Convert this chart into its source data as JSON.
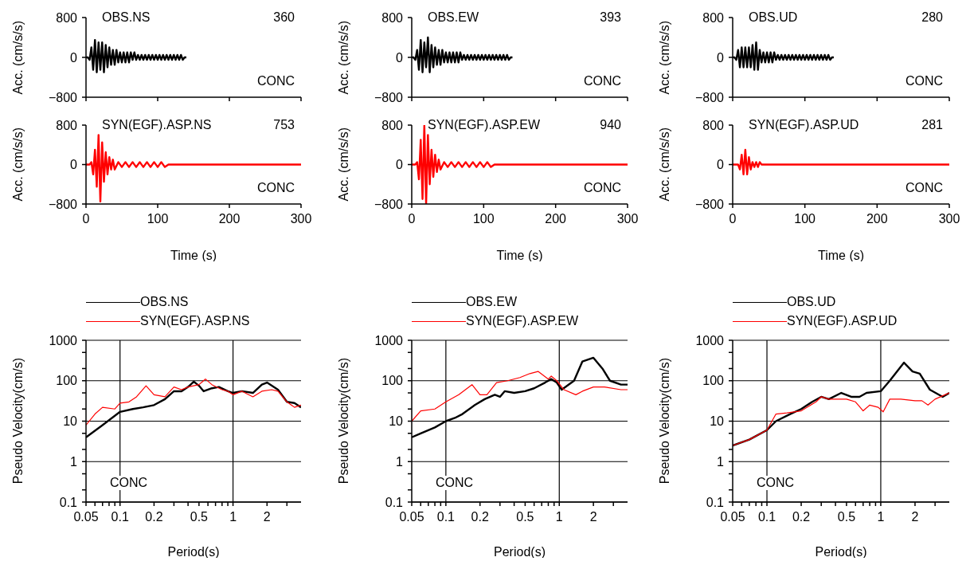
{
  "chart_data": [
    {
      "type": "line",
      "ylabel": "Acc. (cm/s/s)",
      "annotations": [
        "OBS.NS",
        "360",
        "CONC"
      ],
      "xlim": [
        0,
        300
      ],
      "xticks": [
        0,
        100,
        200,
        300
      ],
      "ylim": [
        -800,
        800
      ],
      "yticks": [
        {
          "value": -800,
          "label": "−800"
        },
        0,
        800
      ],
      "tick_labels": "y",
      "series": [
        {
          "color": "#000000",
          "x": [
            0,
            2.5,
            5,
            7.5,
            10,
            12.5,
            15,
            17.5,
            20,
            22.5,
            25,
            27.5,
            30,
            32.5,
            35,
            37.5,
            40,
            42.5,
            45,
            47.5,
            50,
            52.5,
            55,
            57.5,
            60,
            62.5,
            65,
            67.5,
            70,
            72.5,
            75,
            77.5,
            80,
            82.5,
            85,
            87.5,
            90,
            92.5,
            95,
            97.5,
            100,
            102.5,
            105,
            107.5,
            110,
            112.5,
            115,
            117.5,
            120,
            122.5,
            125,
            127.5,
            130,
            132.5,
            135,
            137.5,
            140
          ],
          "values": [
            0,
            0,
            -50,
            200,
            -250,
            350,
            -300,
            300,
            -250,
            300,
            -300,
            250,
            -200,
            200,
            -150,
            150,
            -150,
            150,
            -100,
            100,
            -100,
            100,
            -100,
            100,
            -100,
            100,
            -50,
            100,
            -50,
            50,
            -50,
            50,
            -50,
            50,
            -50,
            50,
            -50,
            50,
            -50,
            50,
            -50,
            50,
            -50,
            50,
            -50,
            50,
            -50,
            50,
            -50,
            50,
            -50,
            50,
            -50,
            50,
            -50,
            0,
            0
          ]
        }
      ]
    },
    {
      "type": "line",
      "ylabel": "Acc. (cm/s/s)",
      "annotations": [
        "OBS.EW",
        "393",
        "CONC"
      ],
      "xlim": [
        0,
        300
      ],
      "xticks": [
        0,
        100,
        200,
        300
      ],
      "ylim": [
        -800,
        800
      ],
      "yticks": [
        {
          "value": -800,
          "label": "−800"
        },
        0,
        800
      ],
      "tick_labels": "y",
      "series": [
        {
          "color": "#000000",
          "x": [
            0,
            2.5,
            5,
            7.5,
            10,
            12.5,
            15,
            17.5,
            20,
            22.5,
            25,
            27.5,
            30,
            32.5,
            35,
            37.5,
            40,
            42.5,
            45,
            47.5,
            50,
            52.5,
            55,
            57.5,
            60,
            62.5,
            65,
            67.5,
            70,
            72.5,
            75,
            77.5,
            80,
            82.5,
            85,
            87.5,
            90,
            92.5,
            95,
            97.5,
            100,
            102.5,
            105,
            107.5,
            110,
            112.5,
            115,
            117.5,
            120,
            122.5,
            125,
            127.5,
            130,
            132.5,
            135,
            137.5,
            140
          ],
          "values": [
            0,
            0,
            -50,
            150,
            -250,
            350,
            -300,
            300,
            -200,
            400,
            -300,
            250,
            -200,
            200,
            -150,
            150,
            -150,
            150,
            -100,
            100,
            -100,
            100,
            -100,
            100,
            -100,
            100,
            -100,
            100,
            -50,
            50,
            -50,
            50,
            -50,
            50,
            -50,
            50,
            -50,
            50,
            -50,
            50,
            -50,
            50,
            -50,
            50,
            -50,
            50,
            -50,
            50,
            -50,
            50,
            -50,
            50,
            -50,
            50,
            -50,
            0,
            0
          ]
        }
      ]
    },
    {
      "type": "line",
      "ylabel": "Acc. (cm/s/s)",
      "annotations": [
        "OBS.UD",
        "280",
        "CONC"
      ],
      "xlim": [
        0,
        300
      ],
      "xticks": [
        0,
        100,
        200,
        300
      ],
      "ylim": [
        -800,
        800
      ],
      "yticks": [
        {
          "value": -800,
          "label": "−800"
        },
        0,
        800
      ],
      "tick_labels": "y",
      "series": [
        {
          "color": "#000000",
          "x": [
            0,
            2.5,
            5,
            7.5,
            10,
            12.5,
            15,
            17.5,
            20,
            22.5,
            25,
            27.5,
            30,
            32.5,
            35,
            37.5,
            40,
            42.5,
            45,
            47.5,
            50,
            52.5,
            55,
            57.5,
            60,
            62.5,
            65,
            67.5,
            70,
            72.5,
            75,
            77.5,
            80,
            82.5,
            85,
            87.5,
            90,
            92.5,
            95,
            97.5,
            100,
            102.5,
            105,
            107.5,
            110,
            112.5,
            115,
            117.5,
            120,
            122.5,
            125,
            127.5,
            130,
            132.5,
            135,
            137.5,
            140
          ],
          "values": [
            0,
            0,
            -50,
            150,
            -200,
            200,
            -200,
            200,
            -200,
            200,
            -200,
            250,
            -250,
            300,
            -250,
            150,
            -100,
            100,
            -100,
            100,
            -100,
            100,
            -100,
            100,
            -50,
            50,
            -50,
            50,
            -50,
            50,
            -50,
            50,
            -50,
            50,
            -50,
            50,
            -50,
            50,
            -50,
            50,
            -50,
            50,
            -50,
            50,
            -50,
            50,
            -50,
            50,
            -50,
            50,
            -50,
            50,
            -50,
            50,
            -50,
            0,
            0
          ]
        }
      ]
    },
    {
      "type": "line",
      "xlabel": "Time (s)",
      "ylabel": "Acc. (cm/s/s)",
      "annotations": [
        "SYN(EGF).ASP.NS",
        "753",
        "CONC"
      ],
      "xlim": [
        0,
        300
      ],
      "xticks": [
        0,
        100,
        200,
        300
      ],
      "ylim": [
        -800,
        800
      ],
      "yticks": [
        {
          "value": -800,
          "label": "−800"
        },
        0,
        800
      ],
      "series": [
        {
          "color": "#ff0000",
          "x": [
            0,
            5,
            7.5,
            10,
            12.5,
            15,
            17.5,
            20,
            22.5,
            25,
            27.5,
            30,
            32.5,
            35,
            37.5,
            40,
            45,
            50,
            55,
            60,
            65,
            70,
            75,
            80,
            85,
            90,
            95,
            100,
            105,
            110,
            115,
            120,
            130,
            140,
            150,
            160,
            170,
            300
          ],
          "values": [
            0,
            0,
            50,
            -200,
            300,
            -450,
            600,
            -750,
            450,
            -350,
            250,
            -200,
            150,
            -100,
            100,
            -100,
            50,
            -50,
            50,
            -50,
            50,
            -50,
            50,
            -50,
            50,
            -50,
            50,
            -50,
            50,
            -50,
            0,
            0,
            0,
            0,
            0,
            0,
            0,
            0
          ]
        }
      ]
    },
    {
      "type": "line",
      "xlabel": "Time (s)",
      "ylabel": "Acc. (cm/s/s)",
      "annotations": [
        "SYN(EGF).ASP.EW",
        "940",
        "CONC"
      ],
      "xlim": [
        0,
        300
      ],
      "xticks": [
        0,
        100,
        200,
        300
      ],
      "ylim": [
        -800,
        800
      ],
      "yticks": [
        {
          "value": -800,
          "label": "−800"
        },
        0,
        800
      ],
      "series": [
        {
          "color": "#ff0000",
          "x": [
            0,
            5,
            7.5,
            10,
            12.5,
            15,
            17.5,
            20,
            22.5,
            25,
            27.5,
            30,
            32.5,
            35,
            37.5,
            40,
            45,
            50,
            55,
            60,
            65,
            70,
            75,
            80,
            85,
            90,
            95,
            100,
            105,
            110,
            115,
            120,
            130,
            140,
            150,
            160,
            170,
            300
          ],
          "values": [
            0,
            0,
            50,
            -300,
            500,
            -700,
            800,
            -800,
            600,
            -400,
            300,
            -250,
            200,
            -150,
            100,
            -100,
            50,
            -50,
            50,
            -50,
            50,
            -50,
            50,
            -50,
            50,
            -50,
            50,
            -50,
            50,
            -50,
            0,
            0,
            0,
            0,
            0,
            0,
            0,
            0
          ]
        }
      ]
    },
    {
      "type": "line",
      "xlabel": "Time (s)",
      "ylabel": "Acc. (cm/s/s)",
      "annotations": [
        "SYN(EGF).ASP.UD",
        "281",
        "CONC"
      ],
      "xlim": [
        0,
        300
      ],
      "xticks": [
        0,
        100,
        200,
        300
      ],
      "ylim": [
        -800,
        800
      ],
      "yticks": [
        {
          "value": -800,
          "label": "−800"
        },
        0,
        800
      ],
      "series": [
        {
          "color": "#ff0000",
          "x": [
            0,
            5,
            7.5,
            10,
            12.5,
            15,
            17.5,
            20,
            22.5,
            25,
            27.5,
            30,
            32.5,
            35,
            37.5,
            40,
            45,
            50,
            55,
            60,
            65,
            70,
            75,
            80,
            85,
            90,
            95,
            100,
            105,
            110,
            115,
            120,
            130,
            140,
            150,
            160,
            170,
            300
          ],
          "values": [
            0,
            0,
            0,
            -100,
            200,
            -200,
            300,
            -200,
            150,
            -100,
            50,
            -50,
            50,
            -50,
            50,
            0,
            0,
            0,
            0,
            0,
            0,
            0,
            0,
            0,
            0,
            0,
            0,
            0,
            0,
            0,
            0,
            0,
            0,
            0,
            0,
            0,
            0,
            0
          ]
        }
      ]
    },
    {
      "type": "line",
      "xlabel": "Period(s)",
      "ylabel": "Pseudo Velocity(cm/s)",
      "annotations": [
        "CONC"
      ],
      "log": "xy",
      "grid": true,
      "legend": "top",
      "xlim": [
        0.05,
        4
      ],
      "xticks": [
        0.05,
        {
          "value": 0.06,
          "label": null
        },
        {
          "value": 0.07,
          "label": null
        },
        {
          "value": 0.08,
          "label": null
        },
        {
          "value": 0.09,
          "label": null
        },
        0.1,
        0.2,
        {
          "value": 0.3,
          "label": null
        },
        {
          "value": 0.4,
          "label": null
        },
        0.5,
        {
          "value": 0.6,
          "label": null
        },
        {
          "value": 0.7,
          "label": null
        },
        {
          "value": 0.8,
          "label": null
        },
        {
          "value": 0.9,
          "label": null
        },
        1,
        2,
        {
          "value": 3,
          "label": null
        }
      ],
      "ylim": [
        0.1,
        1000
      ],
      "yticks": [
        0.1,
        {
          "value": 0.2,
          "label": null
        },
        {
          "value": 0.5,
          "label": null
        },
        1,
        {
          "value": 2,
          "label": null
        },
        {
          "value": 5,
          "label": null
        },
        10,
        {
          "value": 20,
          "label": null
        },
        {
          "value": 50,
          "label": null
        },
        100,
        {
          "value": 200,
          "label": null
        },
        {
          "value": 500,
          "label": null
        },
        1000
      ],
      "series": [
        {
          "name": "OBS.NS",
          "color": "#000000",
          "x": [
            0.05,
            0.07,
            0.1,
            0.13,
            0.16,
            0.2,
            0.25,
            0.3,
            0.35,
            0.4,
            0.45,
            0.5,
            0.55,
            0.65,
            0.75,
            0.9,
            1,
            1.2,
            1.5,
            1.8,
            2,
            2.5,
            3,
            3.5,
            4
          ],
          "values": [
            4,
            8,
            17,
            20,
            22,
            25,
            35,
            55,
            55,
            70,
            95,
            75,
            55,
            65,
            70,
            55,
            50,
            55,
            50,
            80,
            90,
            60,
            30,
            28,
            22
          ]
        },
        {
          "name": "SYN(EGF).ASP.NS",
          "color": "#ff0000",
          "x": [
            0.05,
            0.06,
            0.07,
            0.09,
            0.1,
            0.12,
            0.14,
            0.17,
            0.2,
            0.25,
            0.3,
            0.35,
            0.4,
            0.5,
            0.57,
            0.65,
            0.8,
            0.9,
            1,
            1.2,
            1.5,
            1.8,
            2.2,
            2.5,
            3,
            3.5,
            4
          ],
          "values": [
            8,
            15,
            22,
            20,
            28,
            30,
            40,
            75,
            45,
            40,
            70,
            60,
            70,
            80,
            110,
            80,
            60,
            55,
            45,
            55,
            40,
            55,
            60,
            55,
            30,
            22,
            25
          ]
        }
      ]
    },
    {
      "type": "line",
      "xlabel": "Period(s)",
      "ylabel": "Pseudo Velocity(cm/s)",
      "annotations": [
        "CONC"
      ],
      "log": "xy",
      "grid": true,
      "legend": "top",
      "xlim": [
        0.05,
        4
      ],
      "xticks": [
        0.05,
        {
          "value": 0.06,
          "label": null
        },
        {
          "value": 0.07,
          "label": null
        },
        {
          "value": 0.08,
          "label": null
        },
        {
          "value": 0.09,
          "label": null
        },
        0.1,
        0.2,
        {
          "value": 0.3,
          "label": null
        },
        {
          "value": 0.4,
          "label": null
        },
        0.5,
        {
          "value": 0.6,
          "label": null
        },
        {
          "value": 0.7,
          "label": null
        },
        {
          "value": 0.8,
          "label": null
        },
        {
          "value": 0.9,
          "label": null
        },
        1,
        2,
        {
          "value": 3,
          "label": null
        }
      ],
      "ylim": [
        0.1,
        1000
      ],
      "yticks": [
        0.1,
        {
          "value": 0.2,
          "label": null
        },
        {
          "value": 0.5,
          "label": null
        },
        1,
        {
          "value": 2,
          "label": null
        },
        {
          "value": 5,
          "label": null
        },
        10,
        {
          "value": 20,
          "label": null
        },
        {
          "value": 50,
          "label": null
        },
        100,
        {
          "value": 200,
          "label": null
        },
        {
          "value": 500,
          "label": null
        },
        1000
      ],
      "series": [
        {
          "name": "OBS.EW",
          "color": "#000000",
          "x": [
            0.05,
            0.06,
            0.08,
            0.1,
            0.12,
            0.14,
            0.18,
            0.22,
            0.27,
            0.3,
            0.33,
            0.4,
            0.5,
            0.6,
            0.75,
            0.85,
            0.95,
            1.05,
            1.35,
            1.6,
            2,
            2.4,
            2.8,
            3.5,
            4
          ],
          "values": [
            4,
            5,
            7,
            10,
            12,
            15,
            25,
            35,
            45,
            40,
            55,
            50,
            55,
            65,
            90,
            110,
            90,
            60,
            100,
            300,
            370,
            200,
            100,
            80,
            80
          ]
        },
        {
          "name": "SYN(EGF).ASP.EW",
          "color": "#ff0000",
          "x": [
            0.05,
            0.06,
            0.08,
            0.1,
            0.13,
            0.17,
            0.2,
            0.23,
            0.28,
            0.35,
            0.45,
            0.55,
            0.65,
            0.8,
            0.85,
            0.95,
            1.1,
            1.4,
            1.6,
            2,
            2.5,
            3.5,
            4
          ],
          "values": [
            10,
            18,
            20,
            30,
            45,
            80,
            45,
            45,
            90,
            100,
            120,
            150,
            170,
            110,
            130,
            100,
            60,
            45,
            55,
            70,
            70,
            60,
            60
          ]
        }
      ]
    },
    {
      "type": "line",
      "xlabel": "Period(s)",
      "ylabel": "Pseudo Velocity(cm/s)",
      "annotations": [
        "CONC"
      ],
      "log": "xy",
      "grid": true,
      "legend": "top",
      "xlim": [
        0.05,
        4
      ],
      "xticks": [
        0.05,
        {
          "value": 0.06,
          "label": null
        },
        {
          "value": 0.07,
          "label": null
        },
        {
          "value": 0.08,
          "label": null
        },
        {
          "value": 0.09,
          "label": null
        },
        0.1,
        0.2,
        {
          "value": 0.3,
          "label": null
        },
        {
          "value": 0.4,
          "label": null
        },
        0.5,
        {
          "value": 0.6,
          "label": null
        },
        {
          "value": 0.7,
          "label": null
        },
        {
          "value": 0.8,
          "label": null
        },
        {
          "value": 0.9,
          "label": null
        },
        1,
        2,
        {
          "value": 3,
          "label": null
        }
      ],
      "ylim": [
        0.1,
        1000
      ],
      "yticks": [
        0.1,
        {
          "value": 0.2,
          "label": null
        },
        {
          "value": 0.5,
          "label": null
        },
        1,
        {
          "value": 2,
          "label": null
        },
        {
          "value": 5,
          "label": null
        },
        10,
        {
          "value": 20,
          "label": null
        },
        {
          "value": 50,
          "label": null
        },
        100,
        {
          "value": 200,
          "label": null
        },
        {
          "value": 500,
          "label": null
        },
        1000
      ],
      "series": [
        {
          "name": "OBS.UD",
          "color": "#000000",
          "x": [
            0.05,
            0.07,
            0.1,
            0.12,
            0.16,
            0.2,
            0.25,
            0.3,
            0.35,
            0.45,
            0.55,
            0.65,
            0.75,
            1,
            1.2,
            1.6,
            1.9,
            2.2,
            2.7,
            3.5,
            4
          ],
          "values": [
            2.5,
            3.5,
            6,
            10,
            15,
            20,
            30,
            40,
            35,
            50,
            40,
            40,
            50,
            55,
            100,
            280,
            170,
            150,
            60,
            40,
            50
          ]
        },
        {
          "name": "SYN(EGF).ASP.UD",
          "color": "#ff0000",
          "x": [
            0.05,
            0.07,
            0.1,
            0.12,
            0.15,
            0.2,
            0.27,
            0.3,
            0.35,
            0.5,
            0.6,
            0.7,
            0.8,
            0.95,
            1.05,
            1.2,
            1.5,
            2,
            2.3,
            2.6,
            3,
            4
          ],
          "values": [
            2.5,
            3.5,
            6,
            15,
            16,
            18,
            30,
            40,
            35,
            35,
            30,
            18,
            25,
            22,
            17,
            35,
            35,
            32,
            32,
            25,
            35,
            50
          ]
        }
      ]
    }
  ]
}
